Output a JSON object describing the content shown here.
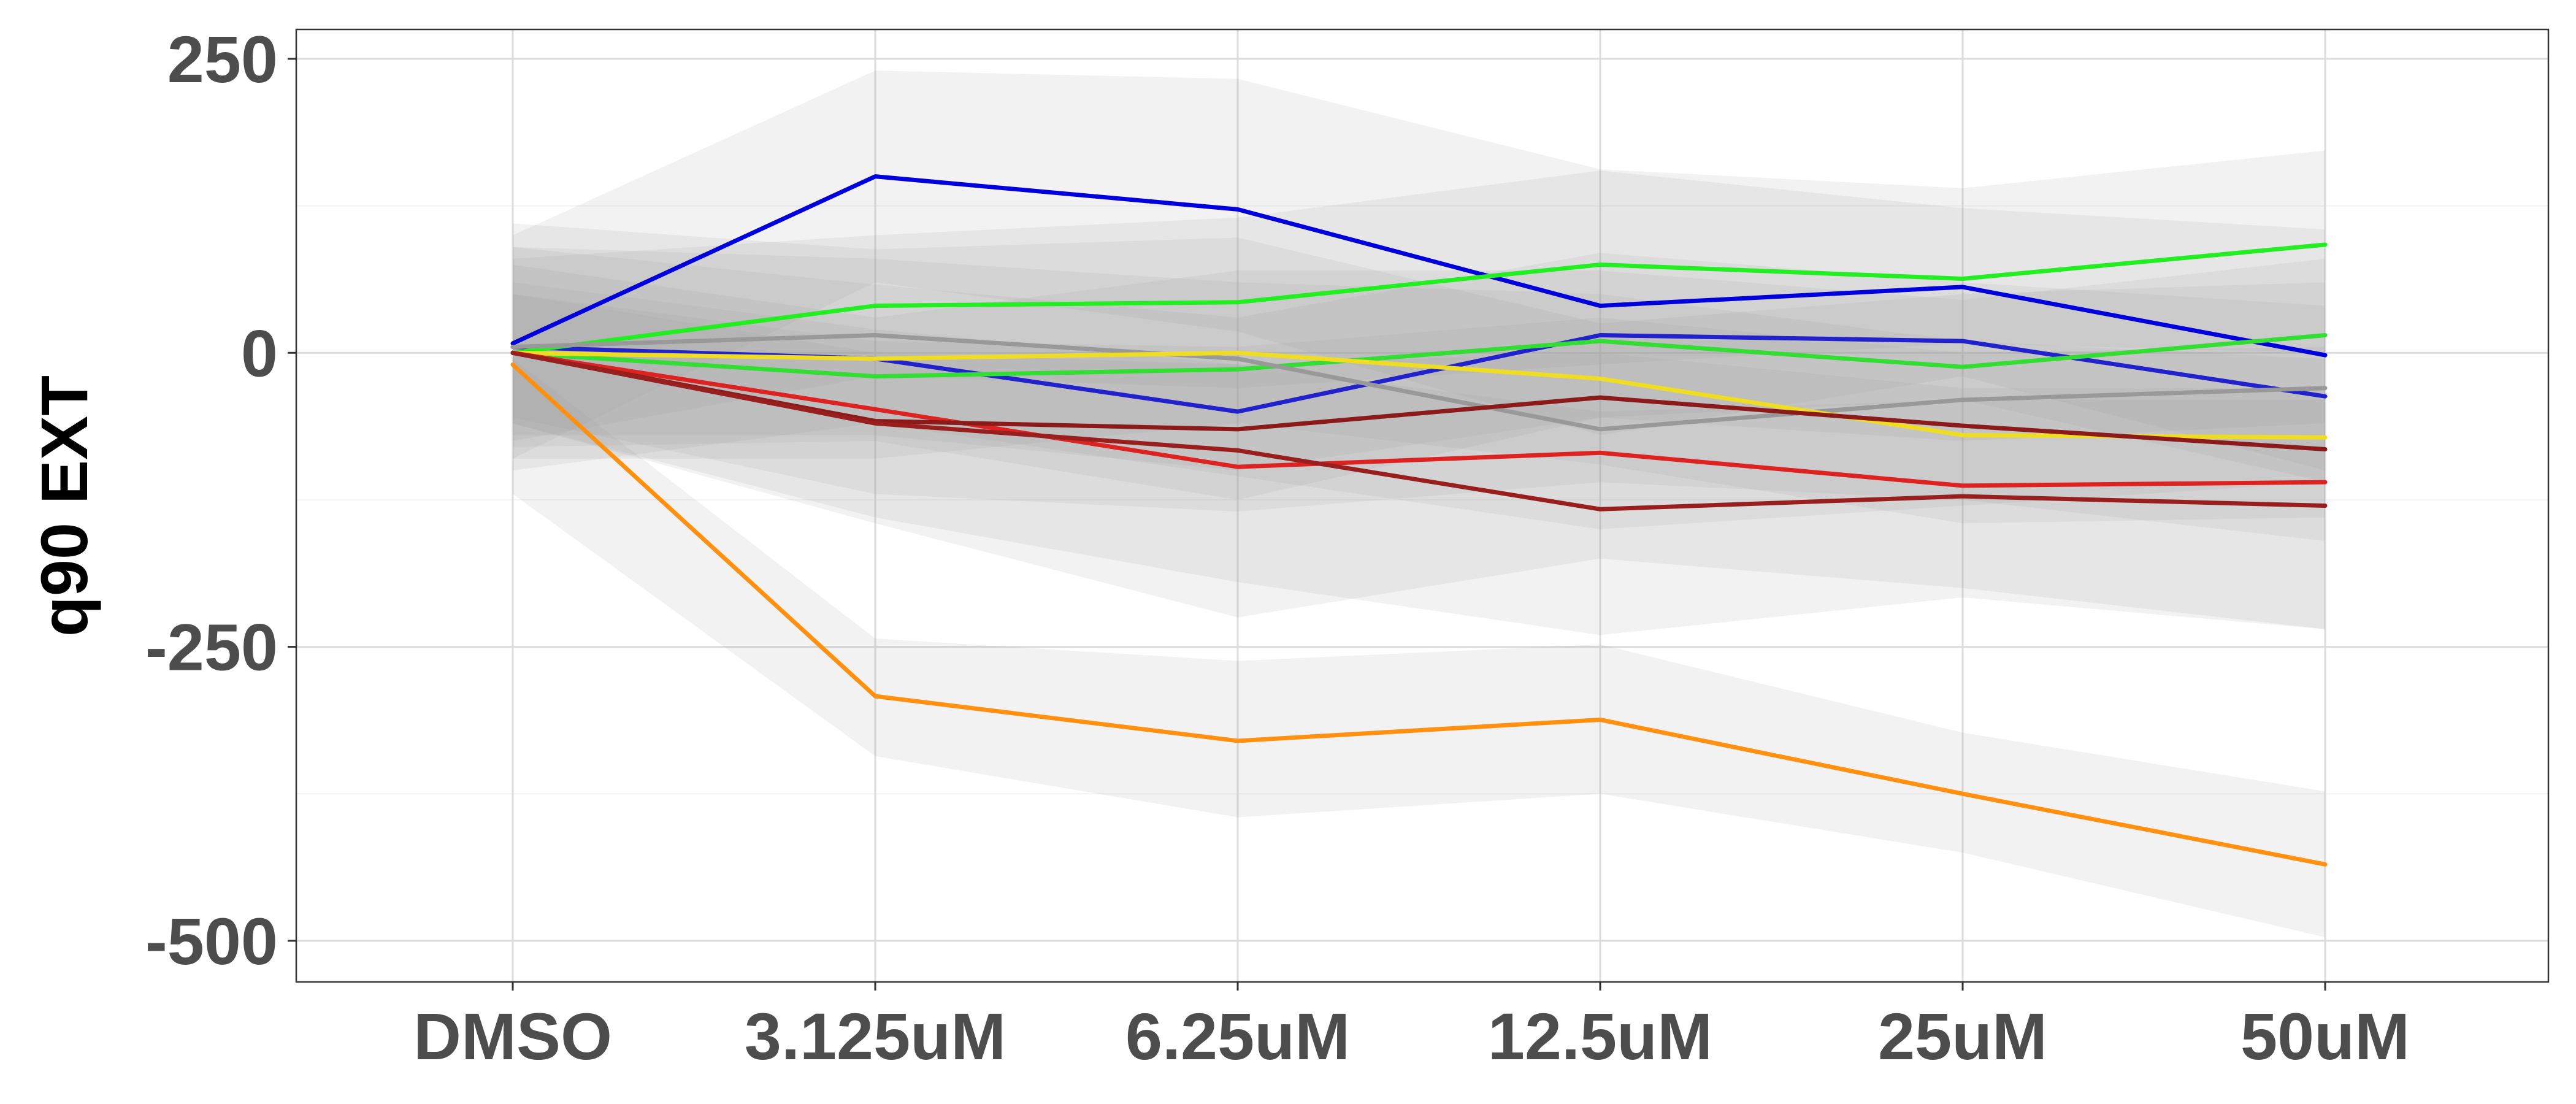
{
  "chart_data": {
    "type": "line",
    "title": "",
    "xlabel": "",
    "ylabel": "q90 EXT",
    "categories": [
      "DMSO",
      "3.125uM",
      "6.25uM",
      "12.5uM",
      "25uM",
      "50uM"
    ],
    "yticks": [
      250,
      0,
      -250,
      -500
    ],
    "ylim": [
      -535,
      275
    ],
    "grid": true,
    "legend": "none",
    "series": [
      {
        "color": "#0000DD",
        "values": [
          8,
          150,
          122,
          40,
          56,
          -2
        ],
        "band_upper": [
          100,
          240,
          233,
          156,
          140,
          172
        ],
        "band_lower": [
          -90,
          60,
          18,
          -70,
          -20,
          -100
        ]
      },
      {
        "color": "#2222CC",
        "values": [
          5,
          -5,
          -50,
          15,
          10,
          -37
        ],
        "band_upper": [
          90,
          58,
          30,
          85,
          60,
          40
        ],
        "band_lower": [
          -80,
          -75,
          -125,
          -55,
          -40,
          -110
        ]
      },
      {
        "color": "#22EE22",
        "values": [
          0,
          40,
          43,
          75,
          63,
          92
        ],
        "band_upper": [
          80,
          100,
          115,
          155,
          123,
          105
        ],
        "band_lower": [
          -75,
          -20,
          -30,
          -10,
          8,
          0
        ]
      },
      {
        "color": "#33DD33",
        "values": [
          0,
          -20,
          -14,
          10,
          -12,
          15
        ],
        "band_upper": [
          75,
          30,
          70,
          70,
          45,
          80
        ],
        "band_lower": [
          -70,
          -70,
          -100,
          -55,
          -75,
          -60
        ]
      },
      {
        "color": "#999999",
        "values": [
          5,
          15,
          -5,
          -65,
          -40,
          -30
        ],
        "band_upper": [
          110,
          88,
          98,
          25,
          50,
          60
        ],
        "band_lower": [
          -100,
          -60,
          -105,
          -150,
          -130,
          -110
        ]
      },
      {
        "color": "#EEDD22",
        "values": [
          0,
          -5,
          0,
          -22,
          -70,
          -72
        ],
        "band_upper": [
          90,
          80,
          60,
          50,
          10,
          -5
        ],
        "band_lower": [
          -90,
          -90,
          -60,
          -95,
          -145,
          -140
        ]
      },
      {
        "color": "#DD2222",
        "values": [
          0,
          -48,
          -97,
          -85,
          -113,
          -110
        ],
        "band_upper": [
          60,
          20,
          -10,
          0,
          -30,
          -30
        ],
        "band_lower": [
          -60,
          -145,
          -225,
          -175,
          -200,
          -235
        ]
      },
      {
        "color": "#8B1A1A",
        "values": [
          0,
          -58,
          -65,
          -38,
          -62,
          -82
        ],
        "band_upper": [
          50,
          10,
          5,
          30,
          0,
          5
        ],
        "band_lower": [
          -55,
          -120,
          -135,
          -110,
          -125,
          -160
        ]
      },
      {
        "color": "#991F1F",
        "values": [
          0,
          -60,
          -83,
          -133,
          -122,
          -130
        ],
        "band_upper": [
          50,
          0,
          -10,
          -50,
          -40,
          -40
        ],
        "band_lower": [
          -60,
          -140,
          -195,
          -240,
          -208,
          -235
        ]
      },
      {
        "color": "#FF9010",
        "values": [
          -10,
          -292,
          -330,
          -312,
          -375,
          -435
        ],
        "band_upper": [
          -5,
          -243,
          -262,
          -248,
          -323,
          -373
        ],
        "band_lower": [
          -120,
          -343,
          -395,
          -375,
          -425,
          -497
        ]
      }
    ]
  }
}
